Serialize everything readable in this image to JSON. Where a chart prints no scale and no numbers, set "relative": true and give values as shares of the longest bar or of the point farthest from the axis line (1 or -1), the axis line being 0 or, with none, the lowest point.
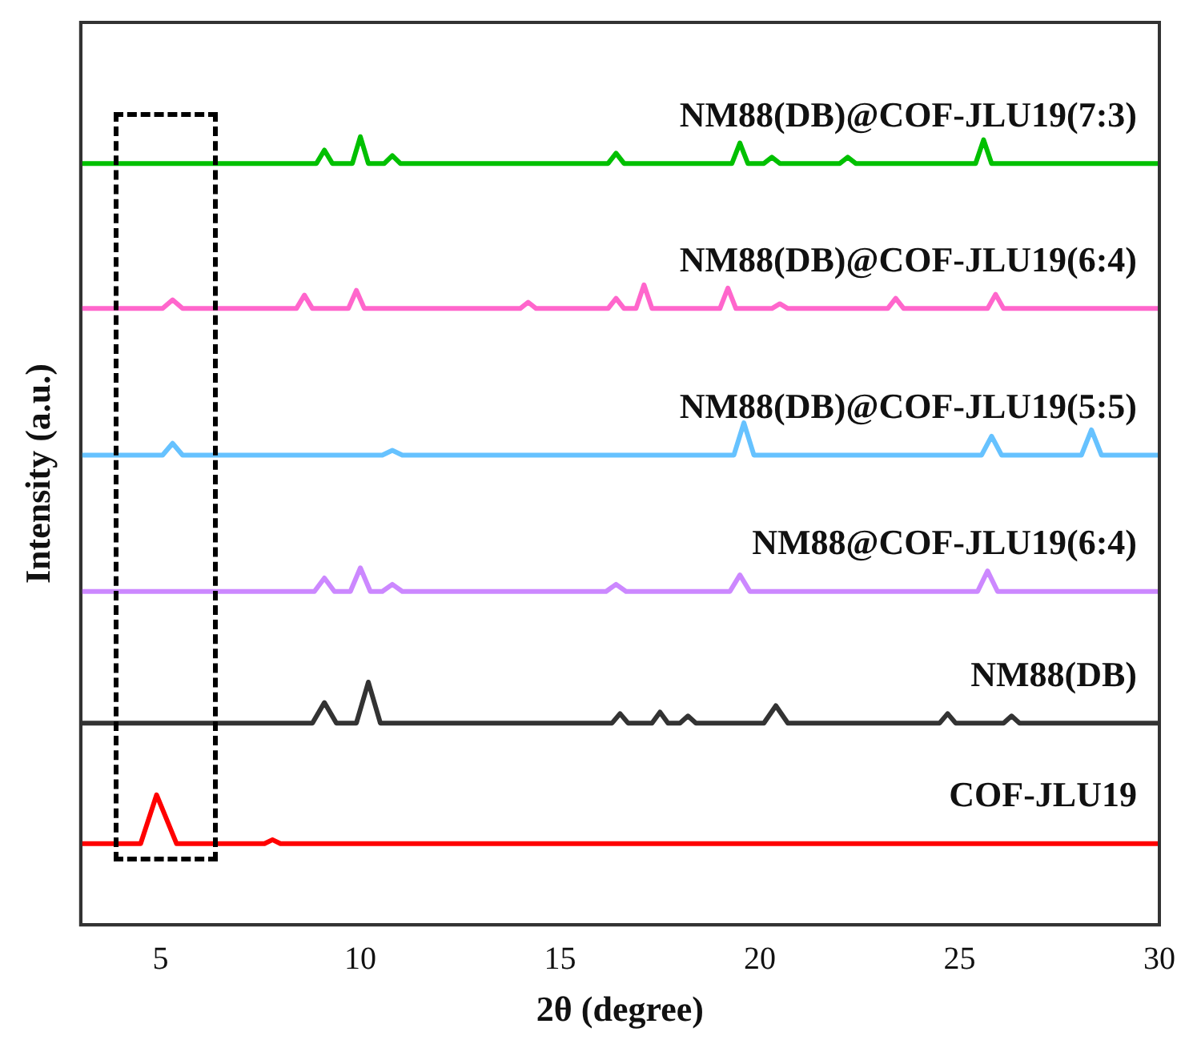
{
  "chart_data": {
    "type": "line",
    "relative": true,
    "xlabel": "2θ (degree)",
    "ylabel": "Intensity (a.u.)",
    "xlim": [
      3,
      30
    ],
    "xticks": [
      5,
      10,
      15,
      20,
      25,
      30
    ],
    "grid": false,
    "legend": false,
    "marker": "none",
    "line_style": "solid",
    "series": [
      {
        "name": "NM88(DB)@COF-JLU19(7:3)",
        "color": "#00c000",
        "x": [
          3,
          8.9,
          9.1,
          9.3,
          9.8,
          10,
          10.2,
          10.6,
          10.8,
          11,
          16.2,
          16.4,
          16.6,
          19.3,
          19.5,
          19.7,
          20.1,
          20.3,
          20.5,
          22,
          22.2,
          22.4,
          25.4,
          25.6,
          25.8,
          30
        ],
        "values": [
          0.966,
          0.966,
          0.983,
          0.966,
          0.966,
          1,
          0.966,
          0.966,
          0.976,
          0.966,
          0.966,
          0.979,
          0.966,
          0.966,
          0.992,
          0.966,
          0.966,
          0.974,
          0.966,
          0.966,
          0.974,
          0.966,
          0.966,
          0.996,
          0.966,
          0.966
        ]
      },
      {
        "name": "NM88(DB)@COF-JLU19(6:4)",
        "color": "#ff66cc",
        "x": [
          3,
          5.05,
          5.3,
          5.55,
          8.4,
          8.6,
          8.8,
          9.7,
          9.9,
          10.1,
          14,
          14.2,
          14.4,
          16.2,
          16.4,
          16.6,
          16.9,
          17.1,
          17.3,
          19,
          19.2,
          19.4,
          20.3,
          20.5,
          20.7,
          23.2,
          23.4,
          23.6,
          25.7,
          25.9,
          26.1,
          30
        ],
        "values": [
          0.782,
          0.782,
          0.793,
          0.782,
          0.782,
          0.799,
          0.782,
          0.782,
          0.805,
          0.782,
          0.782,
          0.79,
          0.782,
          0.782,
          0.795,
          0.782,
          0.782,
          0.812,
          0.782,
          0.782,
          0.808,
          0.782,
          0.782,
          0.788,
          0.782,
          0.782,
          0.795,
          0.782,
          0.782,
          0.8,
          0.782,
          0.782
        ]
      },
      {
        "name": "NM88(DB)@COF-JLU19(5:5)",
        "color": "#66c2ff",
        "x": [
          3,
          5.05,
          5.3,
          5.55,
          10.55,
          10.8,
          11.05,
          19.35,
          19.6,
          19.85,
          25.55,
          25.8,
          26.05,
          28.05,
          28.3,
          28.55,
          30
        ],
        "values": [
          0.596,
          0.596,
          0.611,
          0.596,
          0.596,
          0.602,
          0.596,
          0.596,
          0.637,
          0.596,
          0.596,
          0.62,
          0.596,
          0.596,
          0.628,
          0.596,
          0.596
        ]
      },
      {
        "name": "NM88@COF-JLU19(6:4)",
        "color": "#cc88ff",
        "x": [
          3,
          8.85,
          9.1,
          9.35,
          9.75,
          10,
          10.25,
          10.55,
          10.8,
          11.05,
          16.15,
          16.4,
          16.65,
          19.25,
          19.5,
          19.75,
          25.45,
          25.7,
          25.95,
          30
        ],
        "values": [
          0.423,
          0.423,
          0.44,
          0.423,
          0.423,
          0.453,
          0.423,
          0.423,
          0.432,
          0.423,
          0.423,
          0.432,
          0.423,
          0.423,
          0.444,
          0.423,
          0.423,
          0.449,
          0.423,
          0.423
        ]
      },
      {
        "name": "NM88(DB)",
        "color": "#333333",
        "x": [
          3,
          8.8,
          9.1,
          9.4,
          9.9,
          10.2,
          10.5,
          16.3,
          16.5,
          16.7,
          17.3,
          17.5,
          17.7,
          18,
          18.2,
          18.4,
          20.1,
          20.4,
          20.7,
          24.5,
          24.7,
          24.9,
          26.1,
          26.3,
          26.5,
          30
        ],
        "values": [
          0.256,
          0.256,
          0.282,
          0.256,
          0.256,
          0.308,
          0.256,
          0.256,
          0.268,
          0.256,
          0.256,
          0.27,
          0.256,
          0.256,
          0.265,
          0.256,
          0.256,
          0.278,
          0.256,
          0.256,
          0.268,
          0.256,
          0.256,
          0.265,
          0.256,
          0.256
        ]
      },
      {
        "name": "COF-JLU19",
        "color": "#ff0000",
        "x": [
          3,
          4.5,
          4.9,
          5.4,
          7.6,
          7.8,
          8,
          30
        ],
        "values": [
          0.103,
          0.103,
          0.165,
          0.103,
          0.103,
          0.108,
          0.103,
          0.103
        ]
      }
    ]
  }
}
